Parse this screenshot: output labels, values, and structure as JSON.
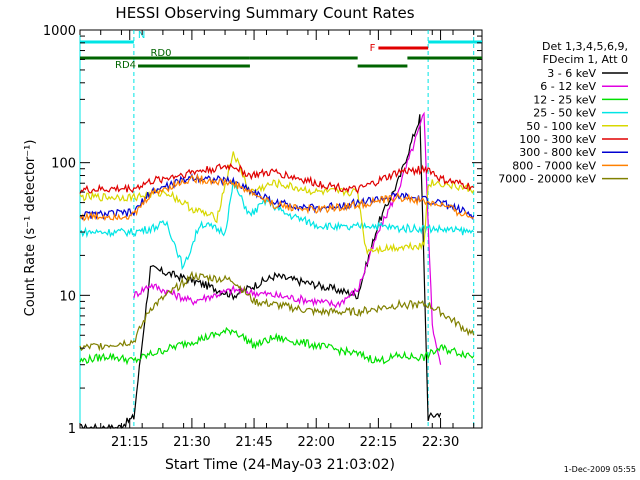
{
  "chart_data": {
    "type": "line",
    "title": "HESSI Observing Summary Count Rates",
    "xlabel": "Start Time (24-May-03 21:03:02)",
    "ylabel": "Count Rate (s⁻¹ detector⁻¹)",
    "y_scale": "log",
    "xlim": [
      "21:03",
      "22:40"
    ],
    "ylim": [
      1,
      1000
    ],
    "x_ticks": [
      "21:15",
      "21:30",
      "21:45",
      "22:00",
      "22:15",
      "22:30"
    ],
    "y_ticks": [
      "1",
      "10",
      "100",
      "1000"
    ],
    "legend_header": [
      "Det 1,3,4,5,6,9,",
      "FDecim 1, Att 0"
    ],
    "legend_placement": "right",
    "timestamp": "1-Dec-2009 05:55",
    "flag_bars": [
      {
        "label": "N",
        "color": "#00e5e5",
        "segments": [
          [
            "21:03",
            "21:16"
          ],
          [
            "22:27",
            "22:40"
          ]
        ]
      },
      {
        "label": "F",
        "color": "#e00000",
        "segments": [
          [
            "22:15",
            "22:27"
          ]
        ]
      },
      {
        "label": "RD0",
        "color": "#006400",
        "segments": [
          [
            "21:03",
            "21:44"
          ],
          [
            "21:44",
            "22:10"
          ],
          [
            "22:22",
            "22:40"
          ]
        ]
      },
      {
        "label": "RD4",
        "color": "#006400",
        "segments": [
          [
            "21:17",
            "21:44"
          ],
          [
            "22:10",
            "22:22"
          ]
        ]
      }
    ],
    "vertical_markers": {
      "color": "#00e5e5",
      "times": [
        "21:03",
        "21:16",
        "22:27",
        "22:38"
      ]
    },
    "series": [
      {
        "name": "3 - 6 keV",
        "color": "#000000",
        "x": [
          "21:03",
          "21:12",
          "21:16",
          "21:20",
          "21:30",
          "21:40",
          "21:50",
          "22:00",
          "22:05",
          "22:10",
          "22:15",
          "22:20",
          "22:25",
          "22:27",
          "22:30"
        ],
        "y": [
          1,
          1,
          1.2,
          16,
          13,
          10,
          14,
          12,
          11,
          10,
          35,
          75,
          220,
          1.2,
          1.3
        ]
      },
      {
        "name": "6 - 12 keV",
        "color": "#e000e0",
        "x": [
          "21:16",
          "21:20",
          "21:30",
          "21:40",
          "21:50",
          "22:00",
          "22:05",
          "22:10",
          "22:15",
          "22:20",
          "22:24",
          "22:26",
          "22:28",
          "22:30"
        ],
        "y": [
          10,
          12,
          9,
          11,
          10,
          9,
          8.5,
          11,
          30,
          65,
          150,
          230,
          6,
          3
        ]
      },
      {
        "name": "12 - 25 keV",
        "color": "#00e000",
        "x": [
          "21:03",
          "21:10",
          "21:16",
          "21:20",
          "21:30",
          "21:40",
          "21:45",
          "21:50",
          "22:00",
          "22:10",
          "22:15",
          "22:20",
          "22:26",
          "22:30",
          "22:38"
        ],
        "y": [
          3.2,
          3.5,
          3.2,
          3.6,
          4.5,
          5.5,
          4.2,
          4.8,
          4.2,
          3.6,
          3.2,
          3.5,
          3.4,
          4,
          3.5
        ]
      },
      {
        "name": "25 - 50 keV",
        "color": "#00e5e5",
        "x": [
          "21:03",
          "21:16",
          "21:20",
          "21:24",
          "21:28",
          "21:32",
          "21:38",
          "21:40",
          "21:44",
          "21:48",
          "21:52",
          "22:00",
          "22:08",
          "22:12",
          "22:20",
          "22:27",
          "22:38"
        ],
        "y": [
          30,
          30,
          32,
          35,
          16,
          35,
          30,
          70,
          40,
          52,
          42,
          34,
          32,
          34,
          32,
          32,
          30
        ]
      },
      {
        "name": "50 - 100 keV",
        "color": "#d8d800",
        "x": [
          "21:03",
          "21:16",
          "21:24",
          "21:30",
          "21:36",
          "21:40",
          "21:44",
          "21:50",
          "22:00",
          "22:10",
          "22:12",
          "22:26",
          "22:27",
          "22:30",
          "22:38"
        ],
        "y": [
          55,
          55,
          60,
          45,
          38,
          120,
          60,
          70,
          60,
          60,
          22,
          24,
          70,
          70,
          62
        ]
      },
      {
        "name": "100 - 300 keV",
        "color": "#e00000",
        "x": [
          "21:03",
          "21:16",
          "21:20",
          "21:30",
          "21:40",
          "21:44",
          "21:50",
          "22:00",
          "22:10",
          "22:20",
          "22:27",
          "22:30",
          "22:38"
        ],
        "y": [
          62,
          64,
          72,
          85,
          95,
          80,
          85,
          70,
          62,
          85,
          90,
          75,
          65
        ]
      },
      {
        "name": "300 - 800 keV",
        "color": "#0000d0",
        "x": [
          "21:03",
          "21:16",
          "21:20",
          "21:30",
          "21:40",
          "21:50",
          "22:00",
          "22:10",
          "22:20",
          "22:30",
          "22:38"
        ],
        "y": [
          40,
          42,
          60,
          78,
          72,
          50,
          45,
          50,
          56,
          50,
          40
        ]
      },
      {
        "name": "800 - 7000 keV",
        "color": "#ff8000",
        "x": [
          "21:03",
          "21:16",
          "21:20",
          "21:30",
          "21:40",
          "21:50",
          "22:00",
          "22:10",
          "22:20",
          "22:30",
          "22:38"
        ],
        "y": [
          39,
          40,
          58,
          76,
          70,
          48,
          44,
          48,
          55,
          48,
          38
        ]
      },
      {
        "name": "7000 - 20000 keV",
        "color": "#808000",
        "x": [
          "21:03",
          "21:16",
          "21:20",
          "21:30",
          "21:40",
          "21:45",
          "21:50",
          "22:00",
          "22:10",
          "22:20",
          "22:27",
          "22:30",
          "22:38"
        ],
        "y": [
          4,
          4.5,
          8,
          14,
          13,
          9,
          8.5,
          7.5,
          7.5,
          8.5,
          8.5,
          7.5,
          5
        ]
      }
    ]
  }
}
